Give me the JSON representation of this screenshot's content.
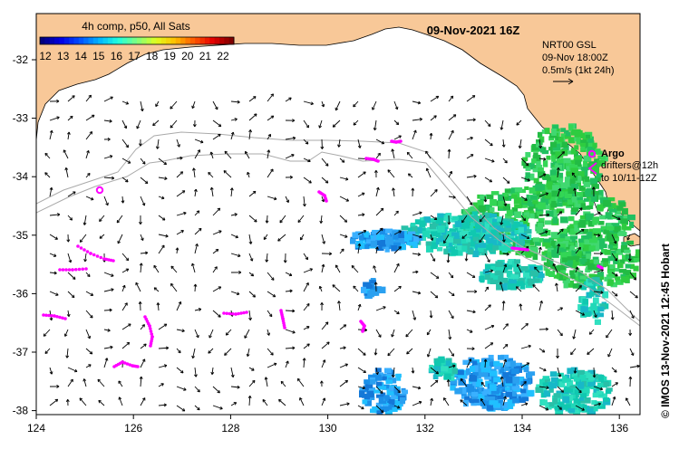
{
  "header": {
    "date_title": "09-Nov-2021 16Z",
    "colorbar_title": "4h comp, p50, All Sats"
  },
  "colorbar": {
    "ticks": [
      "12",
      "13",
      "14",
      "15",
      "16",
      "17",
      "18",
      "19",
      "20",
      "21",
      "22"
    ],
    "colors": [
      "#00007f",
      "#0000e6",
      "#0050ff",
      "#00b4ff",
      "#20ffdf",
      "#7fff7f",
      "#dfff20",
      "#ffc000",
      "#ff5a00",
      "#e60000",
      "#7f0000"
    ]
  },
  "legend": {
    "product": "NRT00 GSL",
    "time": "09-Nov 18:00Z",
    "scale": "0.5m/s (1kt 24h)",
    "argo_label": "Argo",
    "drifters_line1": "drifters@12h",
    "drifters_line2": "to 10/11-12Z"
  },
  "credit": "© IMOS 13-Nov-2021 12:45 Hobart",
  "axes": {
    "x_ticks": [
      "124",
      "126",
      "128",
      "130",
      "132",
      "134",
      "136"
    ],
    "y_ticks": [
      "-32",
      "-33",
      "-34",
      "-35",
      "-36",
      "-37",
      "-38"
    ]
  },
  "colors": {
    "land": "#f8c898",
    "ocean": "#ffffff",
    "drifter": "#ff00ff",
    "bathymetry": "#aaaaaa"
  }
}
